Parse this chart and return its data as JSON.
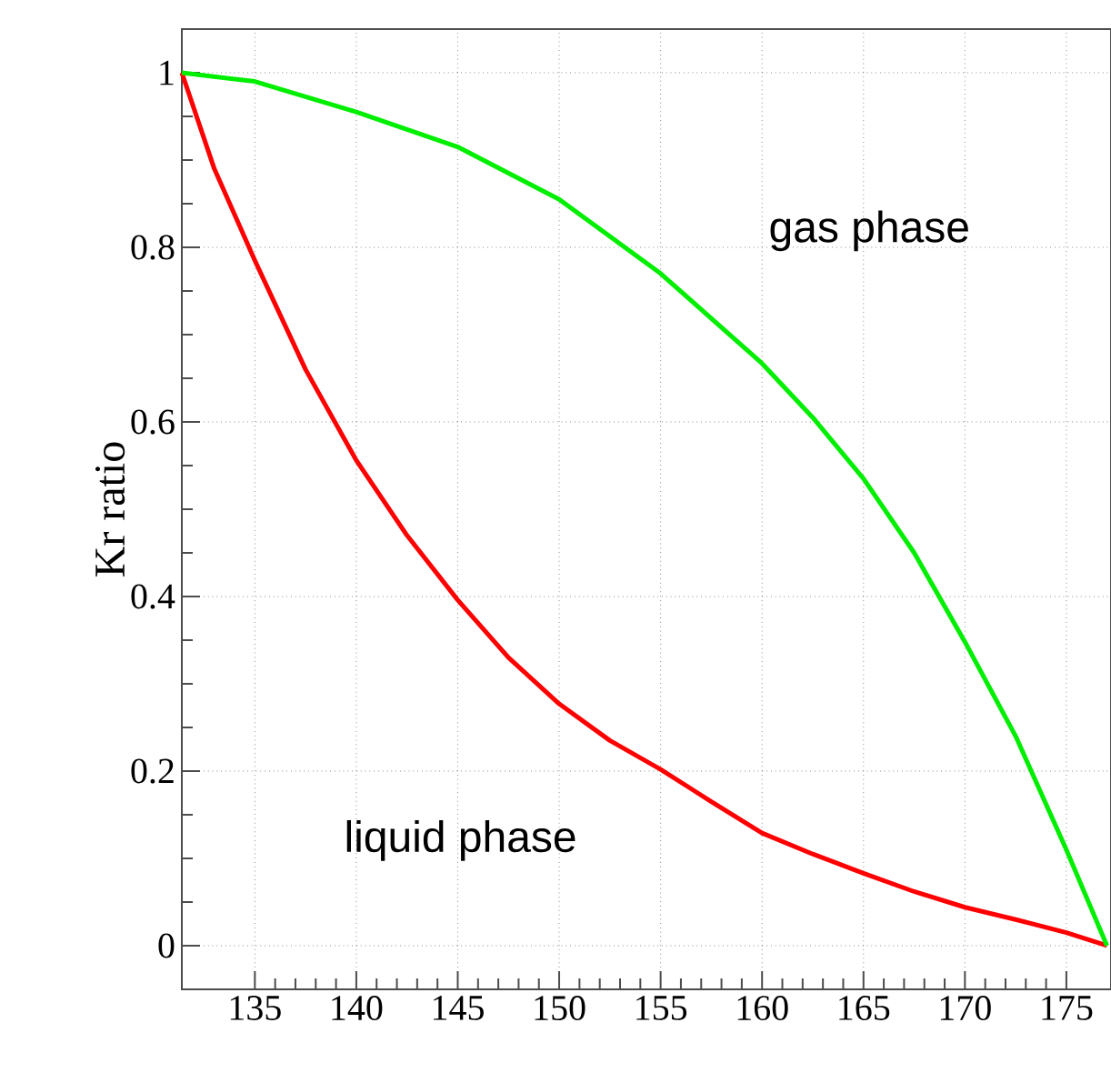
{
  "chart_data": {
    "type": "line",
    "ylabel": "Kr ratio",
    "xlim": [
      131.4,
      177.2
    ],
    "ylim": [
      -0.05,
      1.05
    ],
    "xticks": [
      135,
      140,
      145,
      150,
      155,
      160,
      165,
      170,
      175
    ],
    "yticks": [
      0,
      0.2,
      0.4,
      0.6,
      0.8,
      1
    ],
    "grid": true,
    "marker": "none",
    "line_style": "solid",
    "series": [
      {
        "color": "#ff0000",
        "x": [
          131.4,
          133,
          135,
          137.5,
          140,
          142.5,
          145,
          147.5,
          150,
          152.5,
          155,
          157.5,
          160,
          162.5,
          165,
          167.5,
          170,
          172.5,
          175,
          177
        ],
        "values": [
          1,
          0.89,
          0.785,
          0.66,
          0.556,
          0.47,
          0.396,
          0.33,
          0.277,
          0.235,
          0.202,
          0.165,
          0.129,
          0.105,
          0.083,
          0.062,
          0.044,
          0.03,
          0.015,
          0
        ]
      },
      {
        "color": "#00ee00",
        "x": [
          131.4,
          135,
          140,
          145,
          150,
          155,
          160,
          162.5,
          165,
          167.5,
          170,
          172.5,
          175,
          177
        ],
        "values": [
          1,
          0.99,
          0.955,
          0.915,
          0.855,
          0.77,
          0.667,
          0.605,
          0.535,
          0.45,
          0.348,
          0.24,
          0.11,
          0
        ]
      }
    ],
    "annotations": [
      "gas phase",
      "liquid phase"
    ]
  }
}
